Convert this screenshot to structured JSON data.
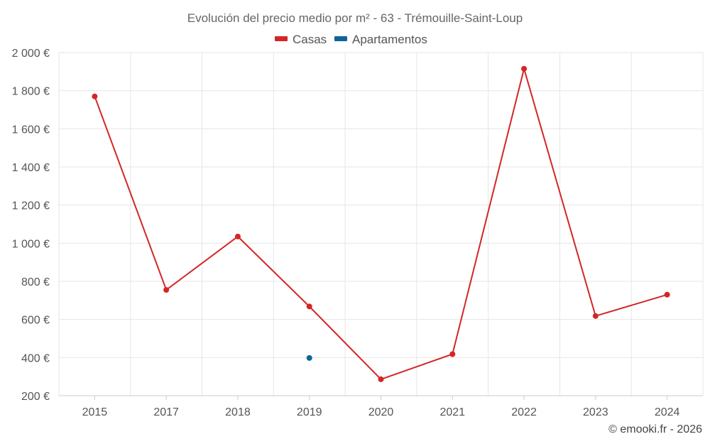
{
  "chart_data": {
    "type": "line",
    "title": "Evolución del precio medio por m² - 63 - Trémouille-Saint-Loup",
    "categories": [
      "2015",
      "2017",
      "2018",
      "2019",
      "2020",
      "2021",
      "2022",
      "2023",
      "2024"
    ],
    "series": [
      {
        "name": "Casas",
        "color": "#d32626",
        "values": [
          1770,
          755,
          1035,
          668,
          286,
          418,
          1915,
          618,
          730
        ]
      },
      {
        "name": "Apartamentos",
        "color": "#0f6499",
        "values": [
          null,
          null,
          null,
          398,
          null,
          null,
          null,
          null,
          null
        ]
      }
    ],
    "ylim": [
      200,
      2000
    ],
    "yticks": [
      200,
      400,
      600,
      800,
      1000,
      1200,
      1400,
      1600,
      1800,
      2000
    ],
    "ytick_labels": [
      "200 €",
      "400 €",
      "600 €",
      "800 €",
      "1 000 €",
      "1 200 €",
      "1 400 €",
      "1 600 €",
      "1 800 €",
      "2 000 €"
    ],
    "grid": true,
    "legend_position": "top-center",
    "xlabel": "",
    "ylabel": ""
  },
  "credit": "© emooki.fr - 2026"
}
